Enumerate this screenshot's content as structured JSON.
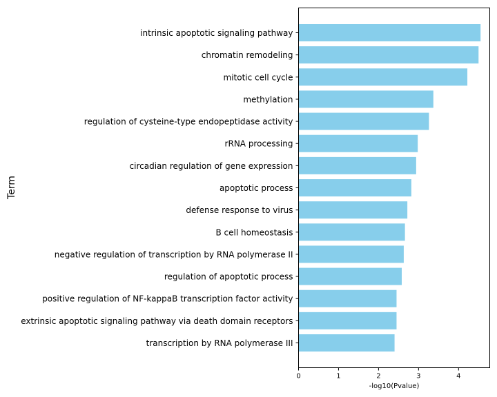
{
  "chart_data": {
    "type": "bar",
    "orientation": "horizontal",
    "categories": [
      "intrinsic apoptotic signaling pathway",
      "chromatin remodeling",
      "mitotic cell cycle",
      "methylation",
      "regulation of cysteine-type endopeptidase activity",
      "rRNA processing",
      "circadian regulation of gene expression",
      "apoptotic process",
      "defense response to virus",
      "B cell homeostasis",
      "negative regulation of transcription by RNA polymerase II",
      "regulation of apoptotic process",
      "positive regulation of NF-kappaB transcription factor activity",
      "extrinsic apoptotic signaling pathway via death domain receptors",
      "transcription by RNA polymerase III"
    ],
    "values": [
      4.55,
      4.5,
      4.22,
      3.37,
      3.26,
      2.98,
      2.94,
      2.82,
      2.72,
      2.66,
      2.63,
      2.58,
      2.45,
      2.45,
      2.4
    ],
    "xlabel": "-log10(Pvalue)",
    "ylabel": "Term",
    "xlim": [
      0,
      4.78
    ],
    "xticks": [
      "0",
      "1",
      "2",
      "3",
      "4"
    ],
    "bar_color": "#87CEEB",
    "grid": false
  }
}
